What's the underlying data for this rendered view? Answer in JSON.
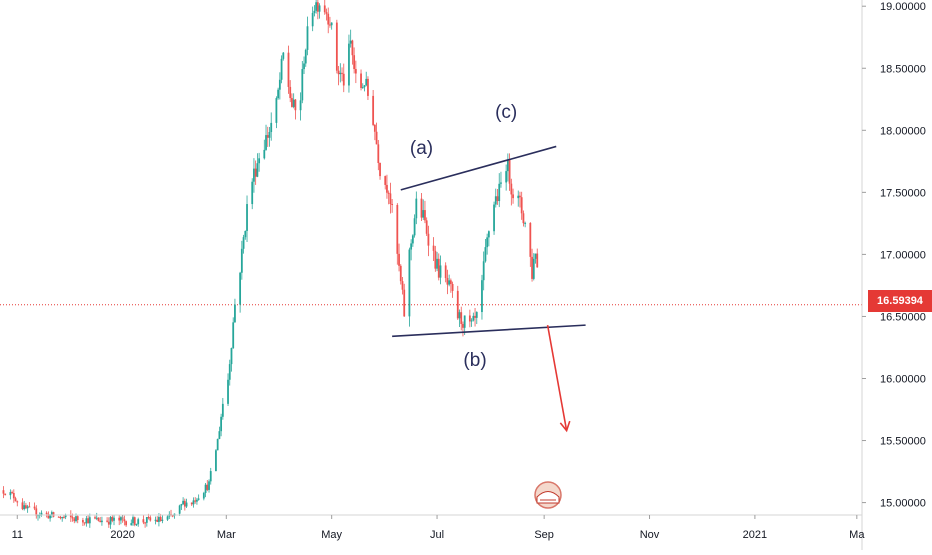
{
  "chart_data": {
    "type": "candlestick",
    "instrument_note": "",
    "colors": {
      "up": "#26a69a",
      "down": "#ef5350",
      "trendline": "#2a2e5c",
      "arrow": "#e53935",
      "price_line": "#e53935"
    },
    "y_axis": {
      "ticks": [
        "15.00000",
        "15.50000",
        "16.00000",
        "16.50000",
        "17.00000",
        "17.50000",
        "18.00000",
        "18.50000",
        "19.00000"
      ],
      "tick_values": [
        15.0,
        15.5,
        16.0,
        16.5,
        17.0,
        17.5,
        18.0,
        18.5,
        19.0
      ],
      "range": [
        14.9,
        19.05
      ]
    },
    "x_axis": {
      "ticks": [
        "11",
        "2020",
        "Mar",
        "May",
        "Jul",
        "Sep",
        "Nov",
        "2021",
        "Ma"
      ],
      "tick_dates": [
        "2019-11-01",
        "2020-01-01",
        "2020-03-01",
        "2020-05-01",
        "2020-07-01",
        "2020-09-01",
        "2020-11-01",
        "2021-01-01",
        "2021-03-01"
      ],
      "range": [
        "2019-10-22",
        "2021-03-04"
      ]
    },
    "current_price": {
      "label": "16.59394",
      "value": 16.59394
    },
    "trendlines": [
      {
        "name": "upper",
        "from": {
          "date": "2020-06-10",
          "price": 17.52
        },
        "to": {
          "date": "2020-09-08",
          "price": 17.87
        }
      },
      {
        "name": "lower",
        "from": {
          "date": "2020-06-05",
          "price": 16.34
        },
        "to": {
          "date": "2020-09-25",
          "price": 16.43
        }
      }
    ],
    "annotations": [
      {
        "text": "(a)",
        "date": "2020-06-22",
        "price": 17.81
      },
      {
        "text": "(b)",
        "date": "2020-07-23",
        "price": 16.1
      },
      {
        "text": "(c)",
        "date": "2020-08-10",
        "price": 18.1
      }
    ],
    "arrow": {
      "from": {
        "date": "2020-09-03",
        "price": 16.43
      },
      "to": {
        "date": "2020-09-14",
        "price": 15.58
      }
    },
    "price_anchors": [
      [
        "2019-10-24",
        15.1
      ],
      [
        "2019-10-30",
        15.05
      ],
      [
        "2019-11-05",
        14.95
      ],
      [
        "2019-11-12",
        14.92
      ],
      [
        "2019-11-25",
        14.88
      ],
      [
        "2019-12-15",
        14.86
      ],
      [
        "2020-01-10",
        14.85
      ],
      [
        "2020-01-25",
        14.86
      ],
      [
        "2020-02-01",
        14.9
      ],
      [
        "2020-02-05",
        15.0
      ],
      [
        "2020-02-10",
        15.0
      ],
      [
        "2020-02-20",
        15.15
      ],
      [
        "2020-02-25",
        15.5
      ],
      [
        "2020-02-29",
        15.9
      ],
      [
        "2020-03-02",
        16.0
      ],
      [
        "2020-03-06",
        16.6
      ],
      [
        "2020-03-10",
        17.0
      ],
      [
        "2020-03-14",
        17.5
      ],
      [
        "2020-03-20",
        17.8
      ],
      [
        "2020-03-26",
        18.0
      ],
      [
        "2020-03-30",
        18.2
      ],
      [
        "2020-04-03",
        18.6
      ],
      [
        "2020-04-08",
        18.2
      ],
      [
        "2020-04-12",
        18.1
      ],
      [
        "2020-04-15",
        18.6
      ],
      [
        "2020-04-20",
        19.0
      ],
      [
        "2020-04-25",
        19.05
      ],
      [
        "2020-04-30",
        18.9
      ],
      [
        "2020-05-04",
        18.5
      ],
      [
        "2020-05-08",
        18.4
      ],
      [
        "2020-05-12",
        18.7
      ],
      [
        "2020-05-16",
        18.3
      ],
      [
        "2020-05-20",
        18.4
      ],
      [
        "2020-05-25",
        18.1
      ],
      [
        "2020-05-30",
        17.6
      ],
      [
        "2020-06-03",
        17.55
      ],
      [
        "2020-06-07",
        17.1
      ],
      [
        "2020-06-11",
        16.65
      ],
      [
        "2020-06-13",
        16.4
      ],
      [
        "2020-06-15",
        17.0
      ],
      [
        "2020-06-19",
        17.4
      ],
      [
        "2020-06-23",
        17.3
      ],
      [
        "2020-06-27",
        17.1
      ],
      [
        "2020-07-01",
        16.9
      ],
      [
        "2020-07-05",
        16.8
      ],
      [
        "2020-07-09",
        16.7
      ],
      [
        "2020-07-13",
        16.5
      ],
      [
        "2020-07-17",
        16.45
      ],
      [
        "2020-07-21",
        16.42
      ],
      [
        "2020-07-25",
        16.5
      ],
      [
        "2020-07-29",
        17.0
      ],
      [
        "2020-08-02",
        17.4
      ],
      [
        "2020-08-06",
        17.5
      ],
      [
        "2020-08-10",
        17.75
      ],
      [
        "2020-08-14",
        17.5
      ],
      [
        "2020-08-18",
        17.4
      ],
      [
        "2020-08-22",
        17.2
      ],
      [
        "2020-08-25",
        16.85
      ],
      [
        "2020-08-27",
        17.05
      ],
      [
        "2020-08-30",
        16.59
      ]
    ]
  }
}
